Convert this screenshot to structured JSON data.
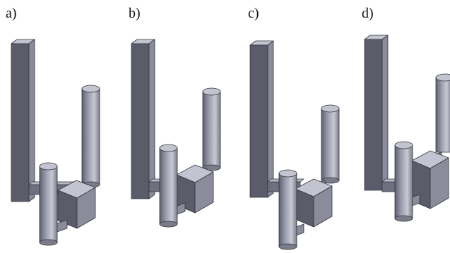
{
  "panels": [
    {
      "id": "a",
      "label": "a)"
    },
    {
      "id": "b",
      "label": "b)"
    },
    {
      "id": "c",
      "label": "c)"
    },
    {
      "id": "d",
      "label": "d)"
    }
  ],
  "colors": {
    "face_light": "#c2c4d0",
    "face_mid": "#8a8c9c",
    "face_dark": "#5a5c6a",
    "edge": "#33343c"
  }
}
